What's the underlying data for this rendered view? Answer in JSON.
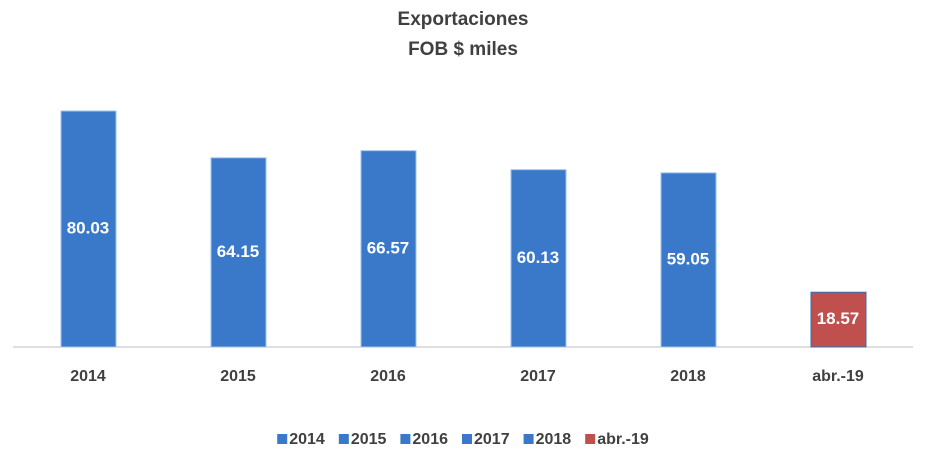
{
  "chart_data": {
    "type": "bar",
    "title": "Exportaciones",
    "subtitle": "FOB $ miles",
    "categories": [
      "2014",
      "2015",
      "2016",
      "2017",
      "2018",
      "abr.-19"
    ],
    "values": [
      80.03,
      64.15,
      66.57,
      60.13,
      59.05,
      18.57
    ],
    "colors": [
      "#3a78c9",
      "#3a78c9",
      "#3a78c9",
      "#3a78c9",
      "#3a78c9",
      "#c0504d"
    ],
    "legend": "bottom"
  }
}
